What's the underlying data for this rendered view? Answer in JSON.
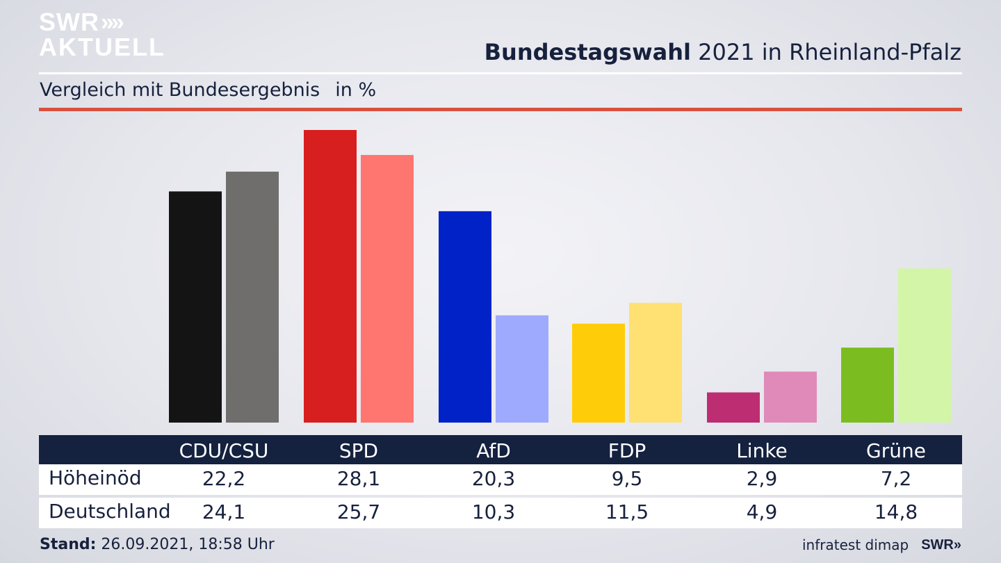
{
  "header": {
    "logo_line1": "SWR",
    "logo_chevrons": "»",
    "logo_line2": "AKTUELL",
    "title_bold": "Bundestagswahl",
    "title_rest": " 2021 in Rheinland-Pfalz",
    "subtitle": "Vergleich mit Bundesergebnis",
    "unit": "in %"
  },
  "colors": {
    "accent_rule": "#d9503f",
    "table_header": "#14213f"
  },
  "chart_data": {
    "type": "bar",
    "title": "Bundestagswahl 2021 in Rheinland-Pfalz",
    "subtitle": "Vergleich mit Bundesergebnis",
    "unit": "in %",
    "categories": [
      "CDU/CSU",
      "SPD",
      "AfD",
      "FDP",
      "Linke",
      "Grüne"
    ],
    "series": [
      {
        "name": "Höheinöd",
        "values": [
          22.2,
          28.1,
          20.3,
          9.5,
          2.9,
          7.2
        ],
        "display": [
          "22,2",
          "28,1",
          "20,3",
          "9,5",
          "2,9",
          "7,2"
        ],
        "colors": [
          "#141414",
          "#d71f1f",
          "#0022c7",
          "#ffcc0a",
          "#bd2d72",
          "#7bbd20"
        ]
      },
      {
        "name": "Deutschland",
        "values": [
          24.1,
          25.7,
          10.3,
          11.5,
          4.9,
          14.8
        ],
        "display": [
          "24,1",
          "25,7",
          "10,3",
          "11,5",
          "4,9",
          "14,8"
        ],
        "colors": [
          "#6f6e6d",
          "#ff7570",
          "#9eaafe",
          "#ffe073",
          "#e08ab9",
          "#d3f5a8"
        ]
      }
    ],
    "ylim": [
      0,
      28.1
    ],
    "grid": false,
    "legend": "none"
  },
  "footer": {
    "stand_label": "Stand:",
    "stand_value": " 26.09.2021, 18:58 Uhr",
    "source": "infratest dimap",
    "brand": "SWR»"
  }
}
